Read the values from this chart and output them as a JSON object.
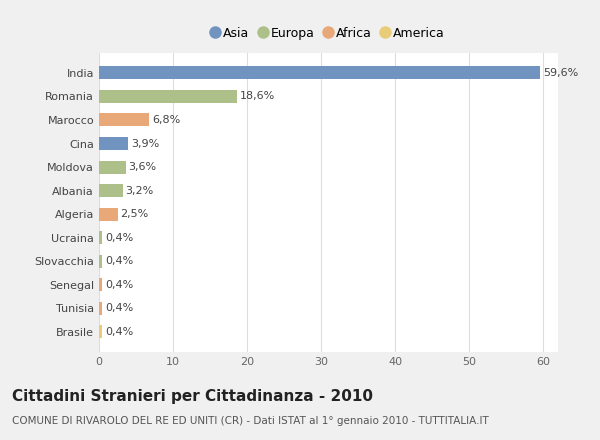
{
  "categories": [
    "India",
    "Romania",
    "Marocco",
    "Cina",
    "Moldova",
    "Albania",
    "Algeria",
    "Ucraina",
    "Slovacchia",
    "Senegal",
    "Tunisia",
    "Brasile"
  ],
  "values": [
    59.6,
    18.6,
    6.8,
    3.9,
    3.6,
    3.2,
    2.5,
    0.4,
    0.4,
    0.4,
    0.4,
    0.4
  ],
  "labels": [
    "59,6%",
    "18,6%",
    "6,8%",
    "3,9%",
    "3,6%",
    "3,2%",
    "2,5%",
    "0,4%",
    "0,4%",
    "0,4%",
    "0,4%",
    "0,4%"
  ],
  "continents": [
    "Asia",
    "Europa",
    "Africa",
    "Asia",
    "Europa",
    "Europa",
    "Africa",
    "Europa",
    "Europa",
    "Africa",
    "Africa",
    "America"
  ],
  "colors": {
    "Asia": "#7093c0",
    "Europa": "#adc08a",
    "Africa": "#e8a878",
    "America": "#e8cc78"
  },
  "legend_order": [
    "Asia",
    "Europa",
    "Africa",
    "America"
  ],
  "xlim": [
    0,
    62
  ],
  "xticks": [
    0,
    10,
    20,
    30,
    40,
    50,
    60
  ],
  "title": "Cittadini Stranieri per Cittadinanza - 2010",
  "subtitle": "COMUNE DI RIVAROLO DEL RE ED UNITI (CR) - Dati ISTAT al 1° gennaio 2010 - TUTTITALIA.IT",
  "bg_color": "#f0f0f0",
  "plot_bg_color": "#ffffff",
  "grid_color": "#dddddd",
  "title_fontsize": 11,
  "subtitle_fontsize": 7.5,
  "label_fontsize": 8,
  "tick_fontsize": 8,
  "bar_height": 0.55
}
